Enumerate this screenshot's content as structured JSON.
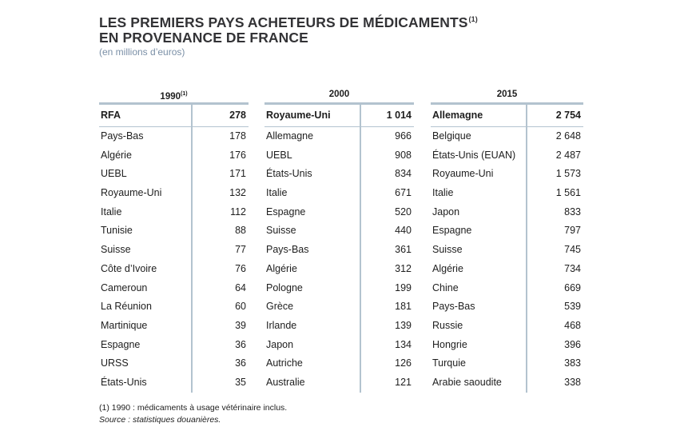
{
  "title_line1": "LES PREMIERS PAYS ACHETEURS DE MÉDICAMENTS",
  "title_sup": "(1)",
  "title_line2": "EN PROVENANCE DE FRANCE",
  "subtitle": "(en millions d’euros)",
  "tables": [
    {
      "year": "1990",
      "year_sup": "(1)",
      "rows": [
        {
          "country": "RFA",
          "value": "278"
        },
        {
          "country": "Pays-Bas",
          "value": "178"
        },
        {
          "country": "Algérie",
          "value": "176"
        },
        {
          "country": "UEBL",
          "value": "171"
        },
        {
          "country": "Royaume-Uni",
          "value": "132"
        },
        {
          "country": "Italie",
          "value": "112"
        },
        {
          "country": "Tunisie",
          "value": "88"
        },
        {
          "country": "Suisse",
          "value": "77"
        },
        {
          "country": "Côte d’Ivoire",
          "value": "76"
        },
        {
          "country": "Cameroun",
          "value": "64"
        },
        {
          "country": "La Réunion",
          "value": "60"
        },
        {
          "country": "Martinique",
          "value": "39"
        },
        {
          "country": "Espagne",
          "value": "36"
        },
        {
          "country": "URSS",
          "value": "36"
        },
        {
          "country": "États-Unis",
          "value": "35"
        }
      ]
    },
    {
      "year": "2000",
      "year_sup": "",
      "rows": [
        {
          "country": "Royaume-Uni",
          "value": "1 014"
        },
        {
          "country": "Allemagne",
          "value": "966"
        },
        {
          "country": "UEBL",
          "value": "908"
        },
        {
          "country": "États-Unis",
          "value": "834"
        },
        {
          "country": "Italie",
          "value": "671"
        },
        {
          "country": "Espagne",
          "value": "520"
        },
        {
          "country": "Suisse",
          "value": "440"
        },
        {
          "country": "Pays-Bas",
          "value": "361"
        },
        {
          "country": "Algérie",
          "value": "312"
        },
        {
          "country": "Pologne",
          "value": "199"
        },
        {
          "country": "Grèce",
          "value": "181"
        },
        {
          "country": "Irlande",
          "value": "139"
        },
        {
          "country": "Japon",
          "value": "134"
        },
        {
          "country": "Autriche",
          "value": "126"
        },
        {
          "country": "Australie",
          "value": "121"
        }
      ]
    },
    {
      "year": "2015",
      "year_sup": "",
      "rows": [
        {
          "country": "Allemagne",
          "value": "2 754"
        },
        {
          "country": "Belgique",
          "value": "2 648"
        },
        {
          "country": "États-Unis (EUAN)",
          "value": "2 487"
        },
        {
          "country": "Royaume-Uni",
          "value": "1 573"
        },
        {
          "country": "Italie",
          "value": "1 561"
        },
        {
          "country": "Japon",
          "value": "833"
        },
        {
          "country": "Espagne",
          "value": "797"
        },
        {
          "country": "Suisse",
          "value": "745"
        },
        {
          "country": "Algérie",
          "value": "734"
        },
        {
          "country": "Chine",
          "value": "669"
        },
        {
          "country": "Pays-Bas",
          "value": "539"
        },
        {
          "country": "Russie",
          "value": "468"
        },
        {
          "country": "Hongrie",
          "value": "396"
        },
        {
          "country": "Turquie",
          "value": "383"
        },
        {
          "country": "Arabie saoudite",
          "value": "338"
        }
      ]
    }
  ],
  "footnote": "(1) 1990 : médicaments à usage vétérinaire inclus.",
  "source": "Source : statistiques douanières.",
  "colors": {
    "rule": "#b3c3cf",
    "subtitle": "#7a8fa6",
    "title": "#333336"
  }
}
